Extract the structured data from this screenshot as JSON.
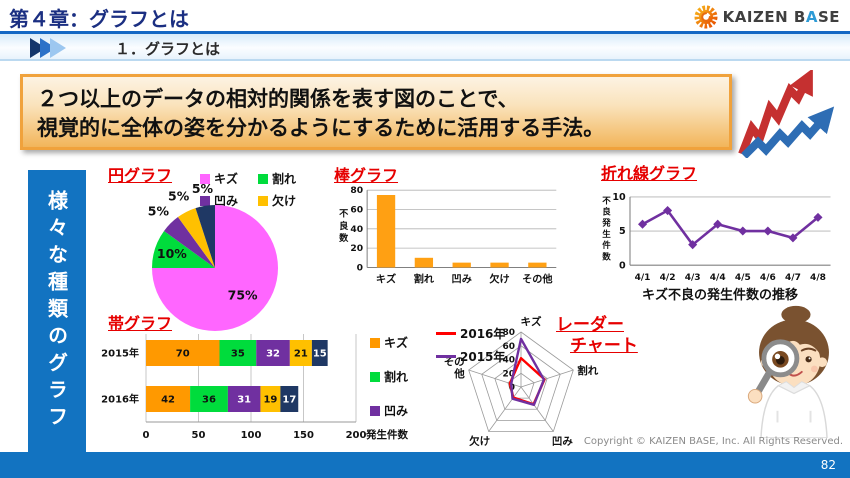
{
  "header": {
    "chapter_title": "第４章：グラフとは",
    "section_title": "１．グラフとは",
    "logo": {
      "part1": "KAIZEN B",
      "accent": "A",
      "part2": "SE"
    }
  },
  "definition_box": {
    "line1": "２つ以上のデータの相対的関係を表す図のことで、",
    "line2": "視覚的に全体の姿を分かるようにするために活用する手法。"
  },
  "sidebar": {
    "vertical_label": "様々な種類のグラフ"
  },
  "footer": {
    "copyright": "Copyright ©  KAIZEN BASE, Inc.  All Rights Reserved.",
    "page_number": "82"
  },
  "colors": {
    "header_blue": "#1b2f82",
    "bar_blue": "#1273c1",
    "title_red": "#e60000",
    "box_border_orange": "#f0a23c"
  },
  "chart_data": [
    {
      "id": "pie",
      "type": "pie",
      "title": "円グラフ",
      "slices": [
        {
          "label": "キズ",
          "value": 75,
          "color": "#FF66FF"
        },
        {
          "label": "割れ",
          "value": 10,
          "color": "#00DC3C"
        },
        {
          "label": "凹み",
          "value": 5,
          "color": "#7030A0"
        },
        {
          "label": "欠け",
          "value": 5,
          "color": "#FFC000"
        },
        {
          "label": "",
          "value": 5,
          "color": "#1F3864"
        }
      ],
      "data_labels": [
        "75%",
        "10%",
        "5%",
        "5%",
        "5%"
      ],
      "legend": [
        {
          "label": "キズ",
          "color": "#FF66FF"
        },
        {
          "label": "割れ",
          "color": "#00DC3C"
        },
        {
          "label": "凹み",
          "color": "#7030A0"
        },
        {
          "label": "欠け",
          "color": "#FFC000"
        }
      ],
      "legend_position": "top-right"
    },
    {
      "id": "bar",
      "type": "bar",
      "title": "棒グラフ",
      "categories": [
        "キズ",
        "割れ",
        "凹み",
        "欠け",
        "その他"
      ],
      "values": [
        75,
        10,
        5,
        5,
        5
      ],
      "bar_color": "#FFA013",
      "ylabel": "不良数",
      "ylim": [
        0,
        80
      ],
      "yticks": [
        0,
        20,
        40,
        60,
        80
      ],
      "grid": true
    },
    {
      "id": "line",
      "type": "line",
      "title": "折れ線グラフ",
      "x": [
        "4/1",
        "4/2",
        "4/3",
        "4/4",
        "4/5",
        "4/6",
        "4/7",
        "4/8"
      ],
      "values": [
        6,
        8,
        3,
        6,
        5,
        5,
        4,
        7
      ],
      "line_color": "#7030A0",
      "marker": "diamond",
      "ylabel": "不良発生件数",
      "ylim": [
        0,
        10
      ],
      "yticks": [
        0,
        5,
        10
      ],
      "caption": "キズ不良の発生件数の推移"
    },
    {
      "id": "band",
      "type": "bar",
      "subtype": "stacked-horizontal",
      "title": "帯グラフ",
      "categories": [
        "2015年",
        "2016年"
      ],
      "series": [
        {
          "name": "キズ",
          "color": "#FF9900",
          "values": [
            70,
            42
          ]
        },
        {
          "name": "割れ",
          "color": "#00DC3C",
          "values": [
            35,
            36
          ]
        },
        {
          "name": "凹み",
          "color": "#7030A0",
          "values": [
            32,
            31
          ]
        },
        {
          "name": "",
          "color": "#FFC000",
          "values": [
            21,
            19
          ]
        },
        {
          "name": "",
          "color": "#1F3864",
          "values": [
            15,
            17
          ]
        }
      ],
      "legend": [
        {
          "label": "キズ",
          "color": "#FF9900"
        },
        {
          "label": "割れ",
          "color": "#00DC3C"
        },
        {
          "label": "凹み",
          "color": "#7030A0"
        }
      ],
      "xlabel": "発生件数",
      "xlim": [
        0,
        200
      ],
      "xticks": [
        0,
        50,
        100,
        150,
        200
      ]
    },
    {
      "id": "radar",
      "type": "radar",
      "title": "レーダーチャート",
      "title_lines": [
        "レーダー",
        "チャート"
      ],
      "axes": [
        "キズ",
        "割れ",
        "凹み",
        "欠け",
        "その他"
      ],
      "series": [
        {
          "name": "2016年",
          "color": "#FF0000",
          "values": [
            42,
            36,
            31,
            19,
            17
          ]
        },
        {
          "name": "2015年",
          "color": "#7030A0",
          "values": [
            70,
            35,
            32,
            21,
            15
          ]
        }
      ],
      "rlim": [
        0,
        80
      ],
      "rticks": [
        0,
        20,
        40,
        60,
        80
      ]
    }
  ]
}
